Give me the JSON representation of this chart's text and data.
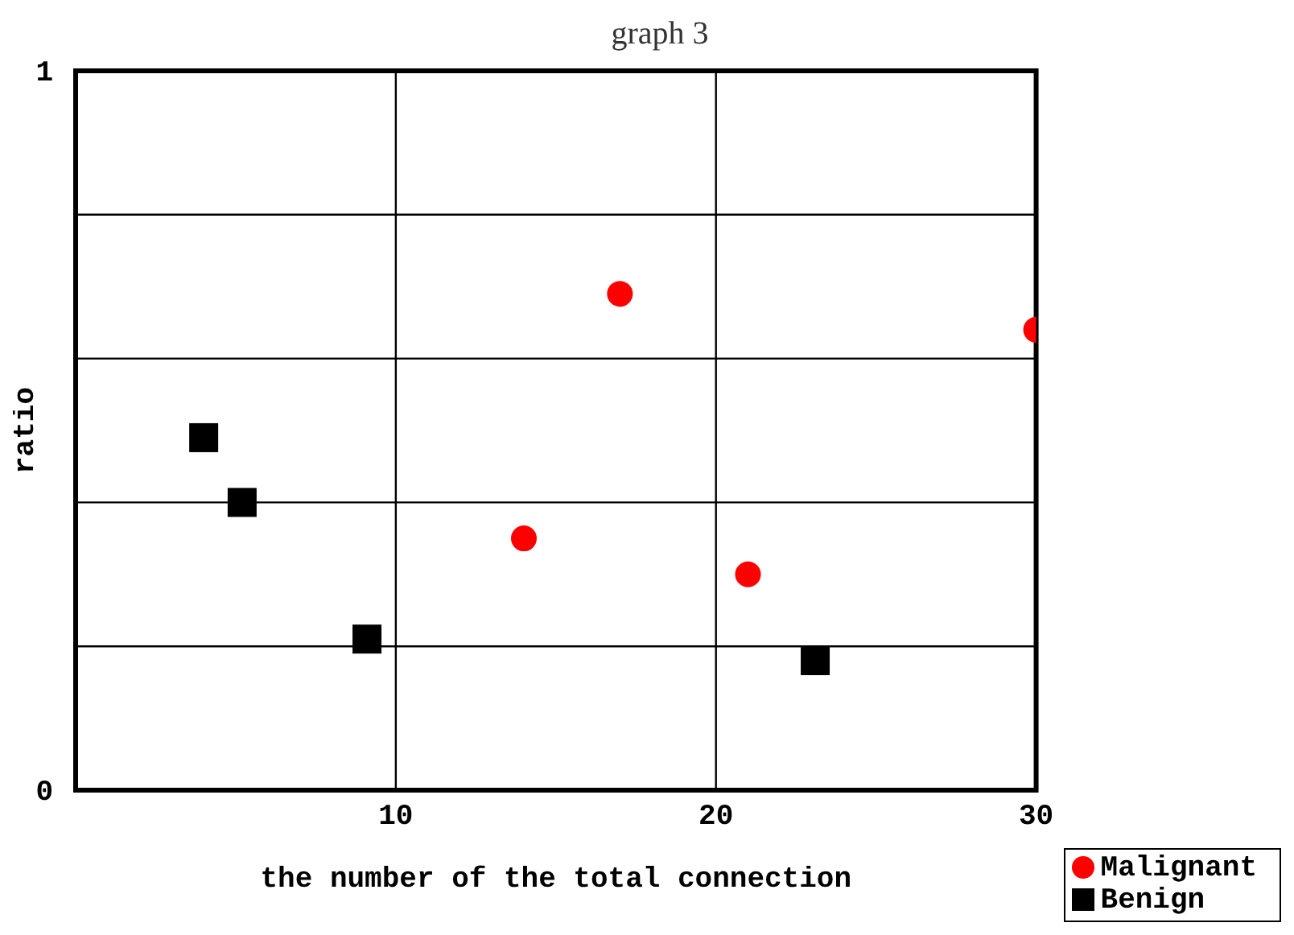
{
  "chart_data": {
    "type": "scatter",
    "title": "graph 3",
    "xlabel": "the number of the total connection",
    "ylabel": "ratio",
    "xlim": [
      0,
      30
    ],
    "xticks": [
      {
        "value": 0,
        "label": null
      },
      10,
      20,
      30
    ],
    "ylim": [
      0,
      1
    ],
    "yticks": [
      0,
      {
        "value": 0.2,
        "label": null
      },
      {
        "value": 0.4,
        "label": null
      },
      {
        "value": 0.6,
        "label": null
      },
      {
        "value": 0.8,
        "label": null
      },
      1
    ],
    "grid": true,
    "legend": "bottom right",
    "series": [
      {
        "name": "Malignant",
        "color": "#ff0000",
        "marker": "circle",
        "x": [
          14,
          17,
          21,
          30
        ],
        "values": [
          0.35,
          0.69,
          0.3,
          0.64
        ]
      },
      {
        "name": "Benign",
        "color": "#000000",
        "marker": "square",
        "x": [
          4,
          5.2,
          9.1,
          23.1
        ],
        "values": [
          0.49,
          0.4,
          0.21,
          0.18
        ]
      }
    ]
  }
}
